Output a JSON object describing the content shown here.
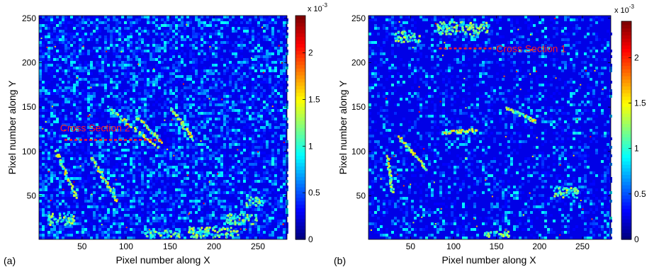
{
  "chart_data": [
    {
      "type": "heatmap",
      "panel_label": "(a)",
      "xlabel": "Pixel number along X",
      "ylabel": "Pixel number along Y",
      "xlim": [
        1,
        283
      ],
      "ylim": [
        1,
        253
      ],
      "xticks": [
        50,
        100,
        150,
        200,
        250
      ],
      "yticks": [
        50,
        100,
        150,
        200,
        250
      ],
      "colorbar": {
        "colormap": "jet",
        "range": [
          0,
          0.0024
        ],
        "scale_label": "x 10",
        "scale_exponent": "-3",
        "ticks": [
          0,
          0.5,
          1,
          1.5,
          2
        ],
        "tick_labels": [
          "0",
          "0.5",
          "1",
          "1.5",
          "2"
        ]
      },
      "annotations": [
        {
          "text": "Cross Section 2",
          "color": "#ff2020",
          "line": {
            "x1": 30,
            "x2": 140,
            "y": 113
          }
        }
      ],
      "bright_features": [
        {
          "shape": "line",
          "x1": 20,
          "y1": 100,
          "x2": 42,
          "y2": 50
        },
        {
          "shape": "line",
          "x1": 60,
          "y1": 95,
          "x2": 88,
          "y2": 45
        },
        {
          "shape": "line",
          "x1": 80,
          "y1": 150,
          "x2": 135,
          "y2": 105
        },
        {
          "shape": "line",
          "x1": 150,
          "y1": 150,
          "x2": 175,
          "y2": 115
        },
        {
          "shape": "line",
          "x1": 110,
          "y1": 140,
          "x2": 140,
          "y2": 112
        },
        {
          "shape": "blob",
          "x": 140,
          "y": 8,
          "w": 40,
          "h": 8
        },
        {
          "shape": "blob",
          "x": 200,
          "y": 10,
          "w": 60,
          "h": 12
        },
        {
          "shape": "blob",
          "x": 245,
          "y": 45,
          "w": 20,
          "h": 10
        },
        {
          "shape": "blob",
          "x": 25,
          "y": 25,
          "w": 30,
          "h": 14
        },
        {
          "shape": "blob",
          "x": 230,
          "y": 25,
          "w": 35,
          "h": 12
        }
      ]
    },
    {
      "type": "heatmap",
      "panel_label": "(b)",
      "xlabel": "Pixel number along X",
      "ylabel": "Pixel number along Y",
      "xlim": [
        1,
        283
      ],
      "ylim": [
        1,
        253
      ],
      "xticks": [
        50,
        100,
        150,
        200,
        250
      ],
      "yticks": [
        50,
        100,
        150,
        200,
        250
      ],
      "colorbar": {
        "colormap": "jet",
        "range": [
          0,
          0.0024
        ],
        "scale_label": "x 10",
        "scale_exponent": "-3",
        "ticks": [
          0,
          0.5,
          1,
          1.5,
          2
        ],
        "tick_labels": [
          "0",
          "0.5",
          "1",
          "1.5",
          "2"
        ]
      },
      "annotations": [
        {
          "text": "Cross Section 1",
          "color": "#ff2020",
          "line": {
            "x1": 83,
            "x2": 148,
            "y": 216
          }
        }
      ],
      "bright_features": [
        {
          "shape": "line",
          "x1": 22,
          "y1": 95,
          "x2": 28,
          "y2": 55
        },
        {
          "shape": "line",
          "x1": 35,
          "y1": 118,
          "x2": 68,
          "y2": 80
        },
        {
          "shape": "line",
          "x1": 85,
          "y1": 122,
          "x2": 125,
          "y2": 125
        },
        {
          "shape": "line",
          "x1": 160,
          "y1": 150,
          "x2": 195,
          "y2": 135
        },
        {
          "shape": "blob",
          "x": 110,
          "y": 240,
          "w": 60,
          "h": 14
        },
        {
          "shape": "blob",
          "x": 45,
          "y": 230,
          "w": 30,
          "h": 12
        },
        {
          "shape": "blob",
          "x": 150,
          "y": 8,
          "w": 30,
          "h": 6
        },
        {
          "shape": "blob",
          "x": 230,
          "y": 55,
          "w": 30,
          "h": 12
        }
      ]
    }
  ]
}
